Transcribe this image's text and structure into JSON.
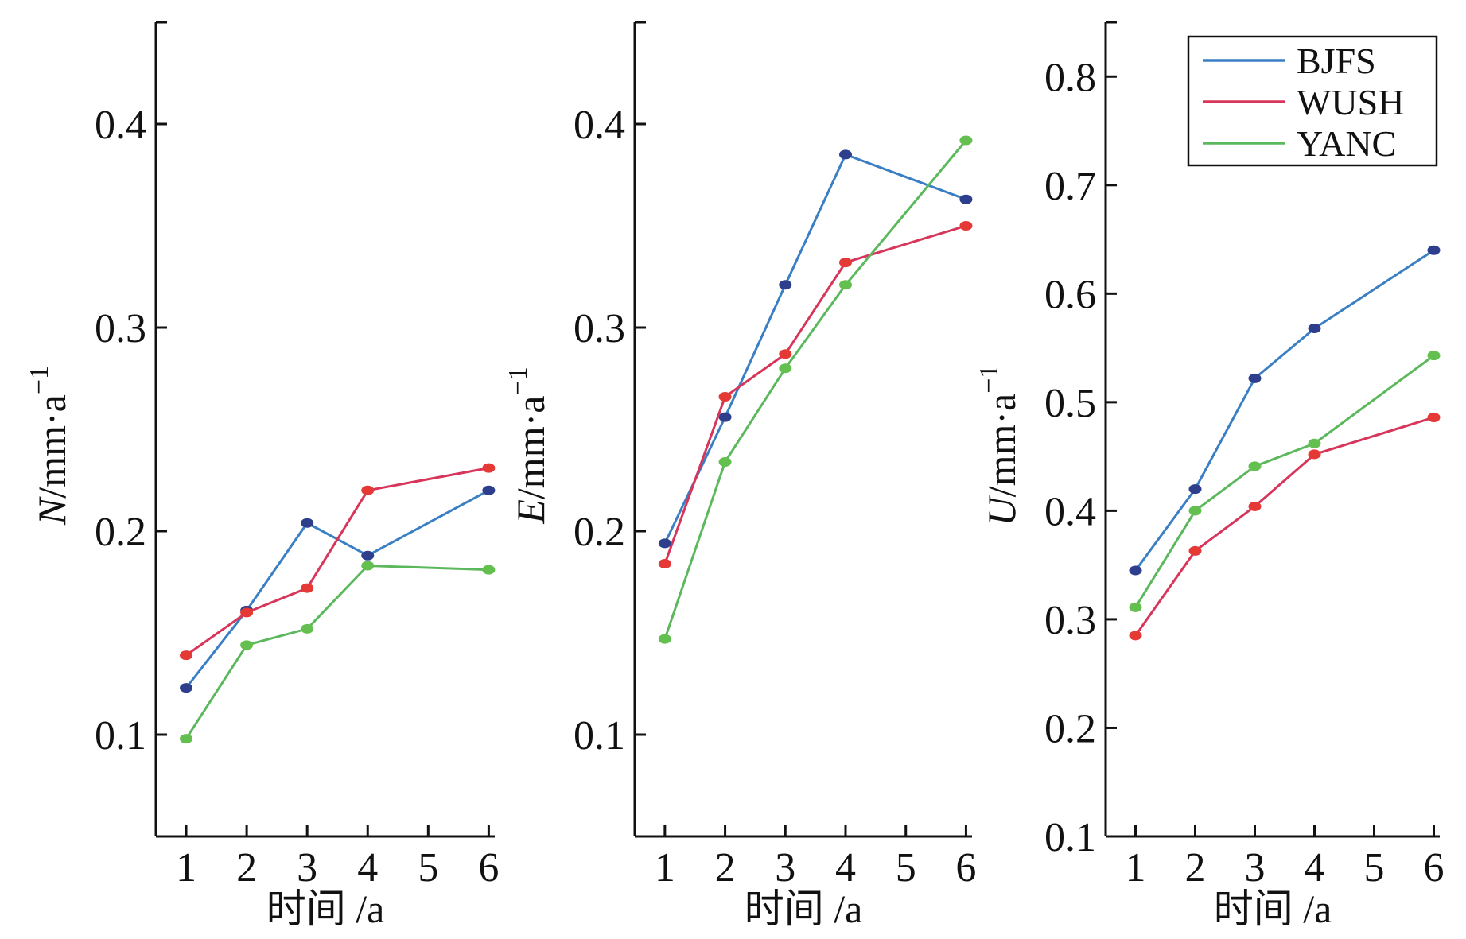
{
  "chart_data": [
    {
      "type": "line",
      "panel": "N",
      "ylabel_var": "N",
      "ylabel_unit": "/mm·a",
      "ylabel_sup": "−1",
      "xlabel": "时间 /a",
      "ylim": [
        0.05,
        0.45
      ],
      "yticks": [
        0.1,
        0.2,
        0.3,
        0.4
      ],
      "ytick_labels": [
        "0.1",
        "0.2",
        "0.3",
        "0.4"
      ],
      "x": [
        1,
        2,
        3,
        4,
        6
      ],
      "xticks": [
        1,
        2,
        3,
        4,
        5,
        6
      ],
      "xtick_labels": [
        "1",
        "2",
        "3",
        "4",
        "5",
        "6"
      ],
      "series": [
        {
          "name": "BJFS",
          "values": [
            0.123,
            0.161,
            0.204,
            0.188,
            0.22
          ]
        },
        {
          "name": "WUSH",
          "values": [
            0.139,
            0.16,
            0.172,
            0.22,
            0.231
          ]
        },
        {
          "name": "YANC",
          "values": [
            0.098,
            0.144,
            0.152,
            0.183,
            0.181
          ]
        }
      ]
    },
    {
      "type": "line",
      "panel": "E",
      "ylabel_var": "E",
      "ylabel_unit": "/mm·a",
      "ylabel_sup": "−1",
      "xlabel": "时间 /a",
      "ylim": [
        0.05,
        0.45
      ],
      "yticks": [
        0.1,
        0.2,
        0.3,
        0.4
      ],
      "ytick_labels": [
        "0.1",
        "0.2",
        "0.3",
        "0.4"
      ],
      "x": [
        1,
        2,
        3,
        4,
        6
      ],
      "xticks": [
        1,
        2,
        3,
        4,
        5,
        6
      ],
      "xtick_labels": [
        "1",
        "2",
        "3",
        "4",
        "5",
        "6"
      ],
      "series": [
        {
          "name": "BJFS",
          "values": [
            0.194,
            0.256,
            0.321,
            0.385,
            0.363
          ]
        },
        {
          "name": "WUSH",
          "values": [
            0.184,
            0.266,
            0.287,
            0.332,
            0.35
          ]
        },
        {
          "name": "YANC",
          "values": [
            0.147,
            0.234,
            0.28,
            0.321,
            0.392
          ]
        }
      ]
    },
    {
      "type": "line",
      "panel": "U",
      "ylabel_var": "U",
      "ylabel_unit": "/mm·a",
      "ylabel_sup": "−1",
      "xlabel": "时间 /a",
      "ylim": [
        0.1,
        0.85
      ],
      "yticks": [
        0.1,
        0.2,
        0.3,
        0.4,
        0.5,
        0.6,
        0.7,
        0.8
      ],
      "ytick_labels": [
        "0.1",
        "0.2",
        "0.3",
        "0.4",
        "0.5",
        "0.6",
        "0.7",
        "0.8"
      ],
      "x": [
        1,
        2,
        3,
        4,
        6
      ],
      "xticks": [
        1,
        2,
        3,
        4,
        5,
        6
      ],
      "xtick_labels": [
        "1",
        "2",
        "3",
        "4",
        "5",
        "6"
      ],
      "series": [
        {
          "name": "BJFS",
          "values": [
            0.345,
            0.42,
            0.522,
            0.568,
            0.64
          ]
        },
        {
          "name": "WUSH",
          "values": [
            0.285,
            0.363,
            0.404,
            0.452,
            0.486
          ]
        },
        {
          "name": "YANC",
          "values": [
            0.311,
            0.4,
            0.441,
            0.462,
            0.543
          ]
        }
      ],
      "legend": {
        "position": "top-right",
        "entries": [
          "BJFS",
          "WUSH",
          "YANC"
        ]
      }
    }
  ],
  "colors": {
    "BJFS": {
      "line": "#3a7fc4",
      "marker": "#2c3e8c"
    },
    "WUSH": {
      "line": "#d8355a",
      "marker": "#e53935"
    },
    "YANC": {
      "line": "#5cb85c",
      "marker": "#63c04f"
    },
    "axis": "#111111"
  }
}
